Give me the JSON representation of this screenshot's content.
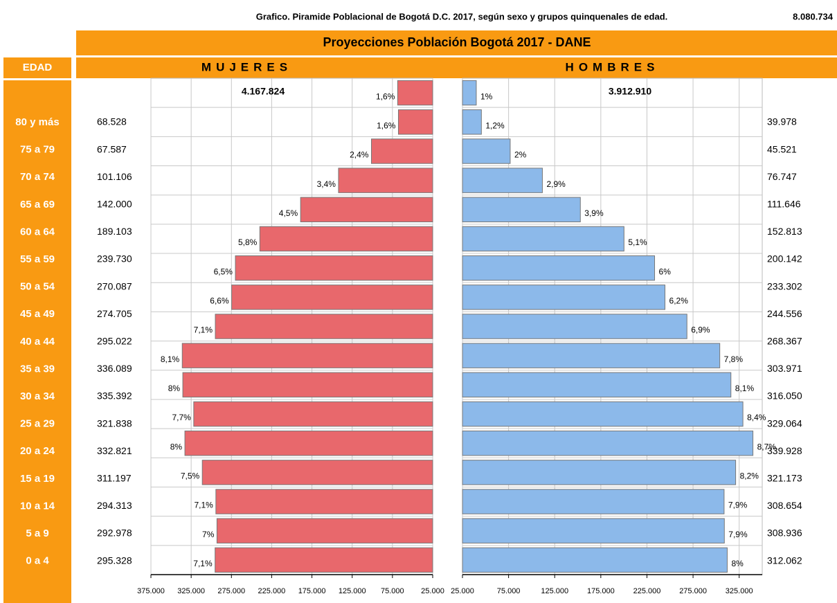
{
  "chart_data": {
    "type": "pyramid",
    "title": "Grafico. Piramide Poblacional de Bogotá D.C. 2017, según sexo y grupos quinquenales de edad.",
    "total_label": "8.080.734",
    "subtitle": "Proyecciones Población Bogotá 2017 - DANE",
    "category_header": "EDAD",
    "categories": [
      "80 y más",
      "75 a 79",
      "70 a 74",
      "65 a 69",
      "60 a 64",
      "55 a 59",
      "50 a 54",
      "45 a 49",
      "40 a 44",
      "35 a 39",
      "30 a 34",
      "25 a 29",
      "20 a 24",
      "15 a 19",
      "10 a 14",
      "5 a 9",
      "0 a 4"
    ],
    "grid": true,
    "series": [
      {
        "name": "MUJERES",
        "color": "#e8686c",
        "side": "left",
        "total_label": "4.167.824",
        "values": [
          68528,
          67587,
          101106,
          142000,
          189103,
          239730,
          270087,
          274705,
          295022,
          336089,
          335392,
          321838,
          332821,
          311197,
          294313,
          292978,
          295328
        ],
        "value_labels": [
          "68.528",
          "67.587",
          "101.106",
          "142.000",
          "189.103",
          "239.730",
          "270.087",
          "274.705",
          "295.022",
          "336.089",
          "335.392",
          "321.838",
          "332.821",
          "311.197",
          "294.313",
          "292.978",
          "295.328"
        ],
        "percent_labels": [
          "1,6%",
          "1,6%",
          "2,4%",
          "3,4%",
          "4,5%",
          "5,8%",
          "6,5%",
          "6,6%",
          "7,1%",
          "8,1%",
          "8%",
          "7,7%",
          "8%",
          "7,5%",
          "7,1%",
          "7%",
          "7,1%"
        ],
        "xlim": [
          25000,
          375000
        ],
        "xticks": [
          {
            "value": 375000,
            "label": "375.000"
          },
          {
            "value": 325000,
            "label": "325.000"
          },
          {
            "value": 275000,
            "label": "275.000"
          },
          {
            "value": 225000,
            "label": "225.000"
          },
          {
            "value": 175000,
            "label": "175.000"
          },
          {
            "value": 125000,
            "label": "125.000"
          },
          {
            "value": 75000,
            "label": "75.000"
          },
          {
            "value": 25000,
            "label": "25.000"
          }
        ]
      },
      {
        "name": "HOMBRES",
        "color": "#8cb9ea",
        "side": "right",
        "total_label": "3.912.910",
        "values": [
          39978,
          45521,
          76747,
          111646,
          152813,
          200142,
          233302,
          244556,
          268367,
          303971,
          316050,
          329064,
          339928,
          321173,
          308654,
          308936,
          312062
        ],
        "value_labels": [
          "39.978",
          "45.521",
          "76.747",
          "111.646",
          "152.813",
          "200.142",
          "233.302",
          "244.556",
          "268.367",
          "303.971",
          "316.050",
          "329.064",
          "339.928",
          "321.173",
          "308.654",
          "308.936",
          "312.062"
        ],
        "percent_labels": [
          "1%",
          "1,2%",
          "2%",
          "2,9%",
          "3,9%",
          "5,1%",
          "6%",
          "6,2%",
          "6,9%",
          "7,8%",
          "8,1%",
          "8,4%",
          "8,7%",
          "8,2%",
          "7,9%",
          "7,9%",
          "8%"
        ],
        "xlim": [
          25000,
          350000
        ],
        "xticks": [
          {
            "value": 25000,
            "label": "25.000"
          },
          {
            "value": 75000,
            "label": "75.000"
          },
          {
            "value": 125000,
            "label": "125.000"
          },
          {
            "value": 175000,
            "label": "175.000"
          },
          {
            "value": 225000,
            "label": "225.000"
          },
          {
            "value": 275000,
            "label": "275.000"
          },
          {
            "value": 325000,
            "label": "325.000"
          }
        ]
      }
    ]
  }
}
